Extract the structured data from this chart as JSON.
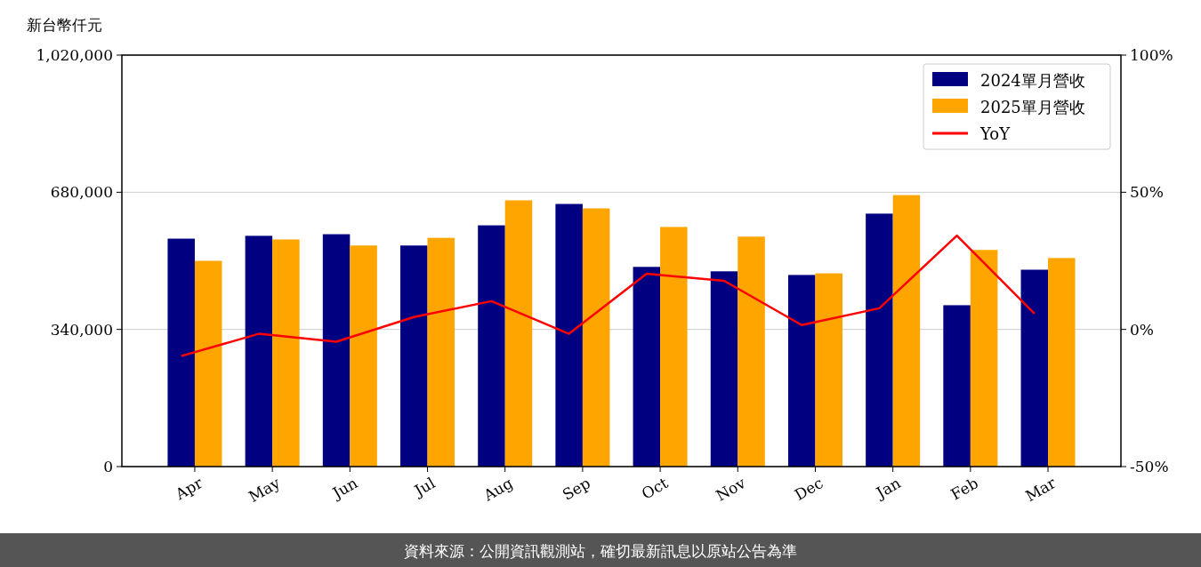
{
  "chart_data": {
    "type": "bar",
    "ylabel": "新台幣仟元",
    "categories": [
      "Apr",
      "May",
      "Jun",
      "Jul",
      "Aug",
      "Sep",
      "Oct",
      "Nov",
      "Dec",
      "Jan",
      "Feb",
      "Mar"
    ],
    "series": [
      {
        "name": "2024單月營收",
        "color": "#000080",
        "values": [
          565000,
          572000,
          576000,
          548000,
          598000,
          651000,
          495000,
          484000,
          475000,
          627000,
          400000,
          488000
        ]
      },
      {
        "name": "2025單月營收",
        "color": "#ffa500",
        "values": [
          510000,
          563000,
          548000,
          567000,
          660000,
          640000,
          594000,
          570000,
          479000,
          673000,
          537000,
          517000
        ]
      },
      {
        "name": "YoY",
        "type": "line",
        "axis": "y2",
        "color": "#ff0000",
        "values": [
          -9.7,
          -1.6,
          -4.5,
          4.5,
          10.3,
          -1.6,
          20.3,
          17.7,
          1.6,
          7.7,
          34.2,
          5.8
        ]
      }
    ],
    "ylim": [
      0,
      1020000
    ],
    "yticks": [
      0,
      {
        "value": 340000,
        "label": "340,000"
      },
      {
        "value": 680000,
        "label": "680,000"
      },
      {
        "value": 1020000,
        "label": "1,020,000"
      }
    ],
    "y2lim": [
      -50,
      100
    ],
    "y2ticks": [
      {
        "value": -50,
        "label": "-50%"
      },
      {
        "value": 0,
        "label": "0%"
      },
      {
        "value": 50,
        "label": "50%"
      },
      {
        "value": 100,
        "label": "100%"
      }
    ],
    "grid": "y",
    "legend": "top right",
    "marker": "none",
    "annotations": [
      "資料來源：公開資訊觀測站，確切最新訊息以原站公告為準"
    ]
  }
}
